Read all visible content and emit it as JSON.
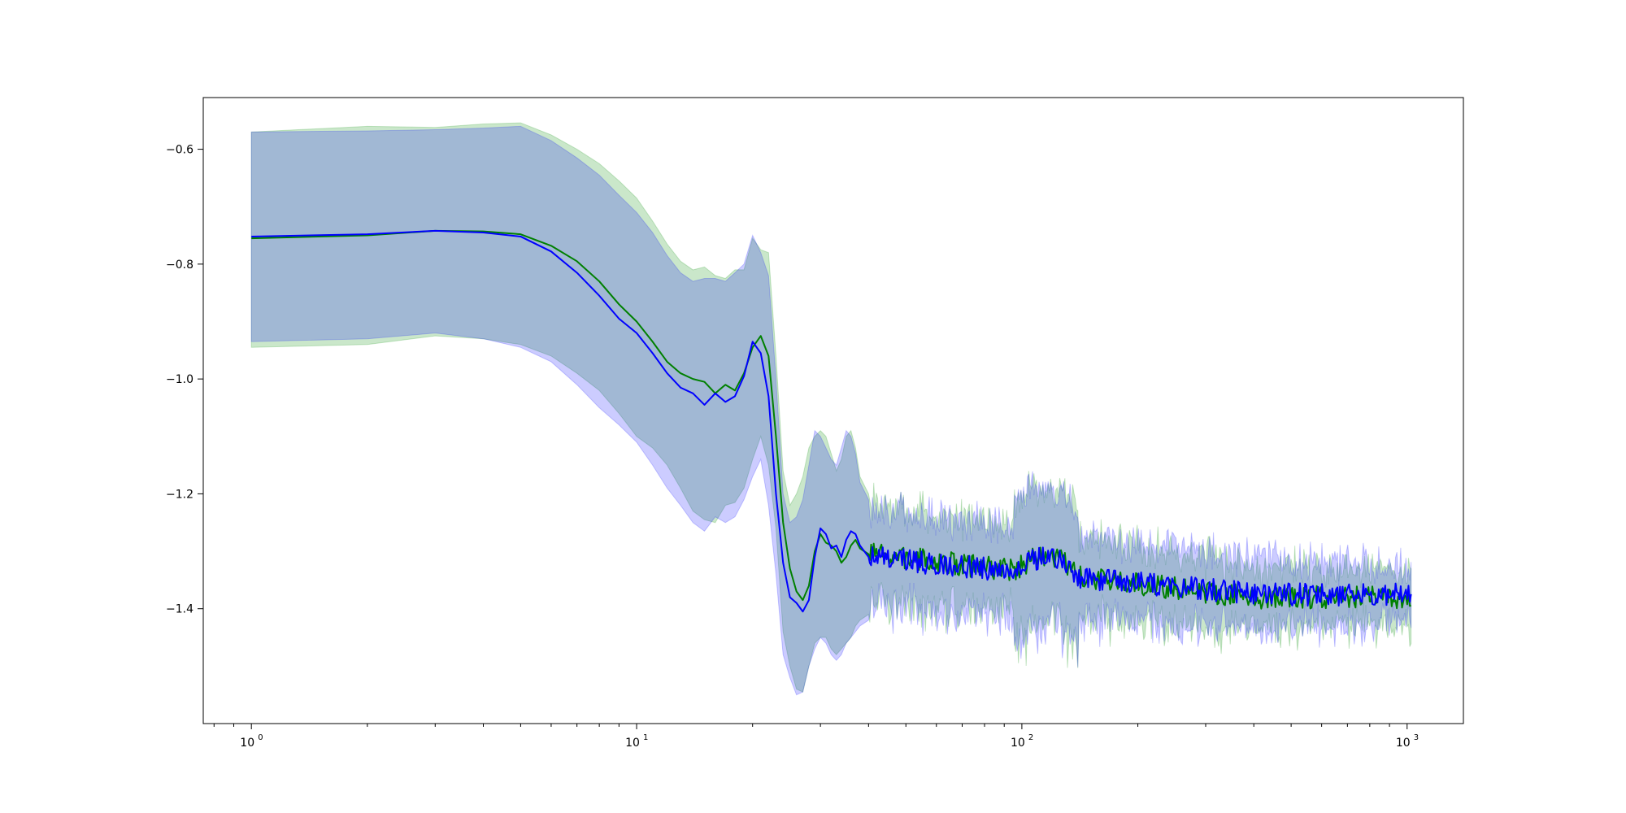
{
  "chart_data": {
    "type": "line",
    "title": "",
    "xlabel": "",
    "ylabel": "",
    "x_scale": "log",
    "xlim": [
      0.75,
      1400
    ],
    "ylim": [
      -1.6,
      -0.51
    ],
    "grid": false,
    "legend": "none",
    "x_ticks": [
      {
        "value": 1,
        "base": "10",
        "exp": "0"
      },
      {
        "value": 10,
        "base": "10",
        "exp": "1"
      },
      {
        "value": 100,
        "base": "10",
        "exp": "2"
      },
      {
        "value": 1000,
        "base": "10",
        "exp": "3"
      }
    ],
    "y_ticks": [
      {
        "value": -0.6,
        "label": "−0.6"
      },
      {
        "value": -0.8,
        "label": "−0.8"
      },
      {
        "value": -1.0,
        "label": "−1.0"
      },
      {
        "value": -1.2,
        "label": "−1.2"
      },
      {
        "value": -1.4,
        "label": "−1.4"
      }
    ],
    "noise": {
      "x_start": 40,
      "x_end": 1024,
      "points": 420
    },
    "series": [
      {
        "color": "#008000",
        "band_color": "#2ca02c",
        "band_opacity": 0.25,
        "points": [
          [
            1,
            -0.755
          ],
          [
            2,
            -0.75
          ],
          [
            3,
            -0.742
          ],
          [
            4,
            -0.743
          ],
          [
            5,
            -0.748
          ],
          [
            6,
            -0.768
          ],
          [
            7,
            -0.795
          ],
          [
            8,
            -0.83
          ],
          [
            9,
            -0.87
          ],
          [
            10,
            -0.9
          ],
          [
            11,
            -0.935
          ],
          [
            12,
            -0.97
          ],
          [
            13,
            -0.99
          ],
          [
            14,
            -1.0
          ],
          [
            15,
            -1.005
          ],
          [
            16,
            -1.025
          ],
          [
            17,
            -1.01
          ],
          [
            18,
            -1.02
          ],
          [
            19,
            -0.99
          ],
          [
            20,
            -0.945
          ],
          [
            21,
            -0.925
          ],
          [
            22,
            -0.96
          ],
          [
            23,
            -1.1
          ],
          [
            24,
            -1.25
          ],
          [
            25,
            -1.33
          ],
          [
            26,
            -1.37
          ],
          [
            27,
            -1.385
          ],
          [
            28,
            -1.36
          ],
          [
            29,
            -1.3
          ],
          [
            30,
            -1.27
          ],
          [
            31,
            -1.285
          ],
          [
            32,
            -1.29
          ],
          [
            33,
            -1.3
          ],
          [
            34,
            -1.32
          ],
          [
            35,
            -1.31
          ],
          [
            36,
            -1.29
          ],
          [
            37,
            -1.28
          ],
          [
            38,
            -1.295
          ],
          [
            40,
            -1.305
          ]
        ],
        "band": [
          [
            1,
            -0.57,
            -0.945
          ],
          [
            2,
            -0.56,
            -0.94
          ],
          [
            3,
            -0.562,
            -0.925
          ],
          [
            4,
            -0.556,
            -0.93
          ],
          [
            5,
            -0.554,
            -0.94
          ],
          [
            6,
            -0.575,
            -0.96
          ],
          [
            7,
            -0.6,
            -0.99
          ],
          [
            8,
            -0.625,
            -1.02
          ],
          [
            9,
            -0.655,
            -1.06
          ],
          [
            10,
            -0.685,
            -1.1
          ],
          [
            11,
            -0.725,
            -1.12
          ],
          [
            12,
            -0.765,
            -1.15
          ],
          [
            13,
            -0.795,
            -1.19
          ],
          [
            14,
            -0.81,
            -1.23
          ],
          [
            15,
            -0.805,
            -1.245
          ],
          [
            16,
            -0.82,
            -1.25
          ],
          [
            17,
            -0.825,
            -1.22
          ],
          [
            18,
            -0.81,
            -1.215
          ],
          [
            19,
            -0.81,
            -1.19
          ],
          [
            20,
            -0.755,
            -1.14
          ],
          [
            21,
            -0.775,
            -1.1
          ],
          [
            22,
            -0.78,
            -1.15
          ],
          [
            23,
            -0.96,
            -1.26
          ],
          [
            24,
            -1.16,
            -1.44
          ],
          [
            25,
            -1.22,
            -1.5
          ],
          [
            26,
            -1.2,
            -1.54
          ],
          [
            27,
            -1.17,
            -1.545
          ],
          [
            28,
            -1.12,
            -1.5
          ],
          [
            29,
            -1.1,
            -1.46
          ],
          [
            30,
            -1.09,
            -1.45
          ],
          [
            31,
            -1.1,
            -1.45
          ],
          [
            32,
            -1.13,
            -1.47
          ],
          [
            33,
            -1.16,
            -1.48
          ],
          [
            34,
            -1.14,
            -1.47
          ],
          [
            35,
            -1.1,
            -1.46
          ],
          [
            36,
            -1.09,
            -1.45
          ],
          [
            37,
            -1.12,
            -1.43
          ],
          [
            38,
            -1.17,
            -1.42
          ],
          [
            40,
            -1.2,
            -1.41
          ]
        ],
        "tail": {
          "mean_end": -1.38,
          "half_width_start": 0.085,
          "half_width_end": 0.045,
          "jitter": 0.02,
          "seed": 7
        }
      },
      {
        "color": "#0000ff",
        "band_color": "#0000ff",
        "band_opacity": 0.2,
        "points": [
          [
            1,
            -0.752
          ],
          [
            2,
            -0.748
          ],
          [
            3,
            -0.742
          ],
          [
            4,
            -0.745
          ],
          [
            5,
            -0.752
          ],
          [
            6,
            -0.778
          ],
          [
            7,
            -0.815
          ],
          [
            8,
            -0.855
          ],
          [
            9,
            -0.895
          ],
          [
            10,
            -0.92
          ],
          [
            11,
            -0.955
          ],
          [
            12,
            -0.99
          ],
          [
            13,
            -1.015
          ],
          [
            14,
            -1.025
          ],
          [
            15,
            -1.045
          ],
          [
            16,
            -1.025
          ],
          [
            17,
            -1.04
          ],
          [
            18,
            -1.03
          ],
          [
            19,
            -0.995
          ],
          [
            20,
            -0.935
          ],
          [
            21,
            -0.955
          ],
          [
            22,
            -1.03
          ],
          [
            23,
            -1.2
          ],
          [
            24,
            -1.32
          ],
          [
            25,
            -1.38
          ],
          [
            26,
            -1.39
          ],
          [
            27,
            -1.405
          ],
          [
            28,
            -1.385
          ],
          [
            29,
            -1.31
          ],
          [
            30,
            -1.26
          ],
          [
            31,
            -1.27
          ],
          [
            32,
            -1.295
          ],
          [
            33,
            -1.29
          ],
          [
            34,
            -1.31
          ],
          [
            35,
            -1.28
          ],
          [
            36,
            -1.265
          ],
          [
            37,
            -1.27
          ],
          [
            38,
            -1.29
          ],
          [
            40,
            -1.31
          ]
        ],
        "band": [
          [
            1,
            -0.57,
            -0.935
          ],
          [
            2,
            -0.568,
            -0.93
          ],
          [
            3,
            -0.566,
            -0.92
          ],
          [
            4,
            -0.563,
            -0.93
          ],
          [
            5,
            -0.56,
            -0.945
          ],
          [
            6,
            -0.585,
            -0.97
          ],
          [
            7,
            -0.615,
            -1.01
          ],
          [
            8,
            -0.645,
            -1.05
          ],
          [
            9,
            -0.68,
            -1.08
          ],
          [
            10,
            -0.71,
            -1.11
          ],
          [
            11,
            -0.745,
            -1.15
          ],
          [
            12,
            -0.785,
            -1.19
          ],
          [
            13,
            -0.815,
            -1.22
          ],
          [
            14,
            -0.83,
            -1.25
          ],
          [
            15,
            -0.825,
            -1.265
          ],
          [
            16,
            -0.825,
            -1.24
          ],
          [
            17,
            -0.83,
            -1.25
          ],
          [
            18,
            -0.815,
            -1.24
          ],
          [
            19,
            -0.8,
            -1.21
          ],
          [
            20,
            -0.75,
            -1.17
          ],
          [
            21,
            -0.78,
            -1.14
          ],
          [
            22,
            -0.82,
            -1.22
          ],
          [
            23,
            -1.0,
            -1.34
          ],
          [
            24,
            -1.2,
            -1.48
          ],
          [
            25,
            -1.25,
            -1.52
          ],
          [
            26,
            -1.24,
            -1.55
          ],
          [
            27,
            -1.21,
            -1.545
          ],
          [
            28,
            -1.15,
            -1.5
          ],
          [
            29,
            -1.09,
            -1.47
          ],
          [
            30,
            -1.1,
            -1.45
          ],
          [
            31,
            -1.12,
            -1.46
          ],
          [
            32,
            -1.14,
            -1.48
          ],
          [
            33,
            -1.15,
            -1.49
          ],
          [
            34,
            -1.12,
            -1.48
          ],
          [
            35,
            -1.09,
            -1.46
          ],
          [
            36,
            -1.1,
            -1.45
          ],
          [
            37,
            -1.13,
            -1.44
          ],
          [
            38,
            -1.18,
            -1.43
          ],
          [
            40,
            -1.21,
            -1.42
          ]
        ],
        "tail": {
          "mean_end": -1.375,
          "half_width_start": 0.085,
          "half_width_end": 0.05,
          "jitter": 0.02,
          "seed": 13
        }
      }
    ]
  }
}
